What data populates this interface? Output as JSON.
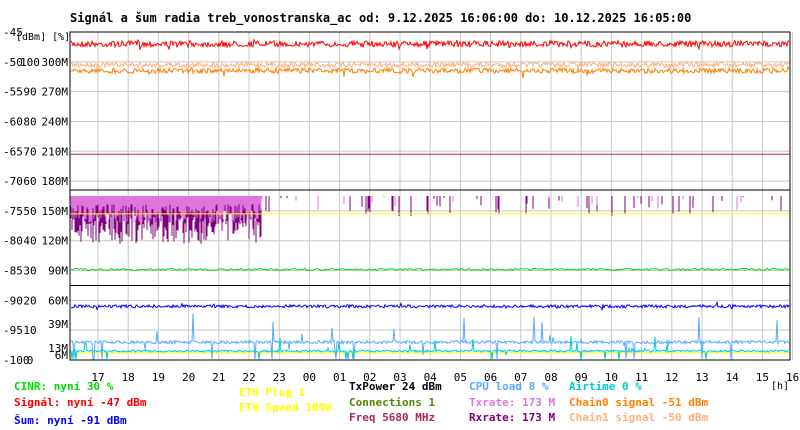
{
  "chart_data": {
    "type": "line",
    "title": "Signál a šum radia treb_vonostranska_ac od: 9.12.2025 16:06:00 do: 10.12.2025 16:05:00",
    "y_axis": {
      "units_label": "[dBm] [%]",
      "dbm": [
        "-45",
        "-50",
        "-55",
        "-60",
        "-65",
        "-70",
        "-75",
        "-80",
        "-85",
        "-90",
        "-95",
        "-100"
      ],
      "percent": [
        "100",
        "90",
        "80",
        "70",
        "60",
        "50",
        "40",
        "30",
        "20",
        "10",
        "0"
      ],
      "rate": [
        "300M",
        "270M",
        "240M",
        "210M",
        "180M",
        "150M",
        "120M",
        "90M",
        "60M"
      ],
      "rate_low_1": "39M",
      "rate_low_2": "13M",
      "rate_low_3": "6M",
      "ylim": [
        -100,
        -45
      ]
    },
    "x_axis": {
      "unit": "[h]",
      "ticks": [
        "17",
        "18",
        "19",
        "20",
        "21",
        "22",
        "23",
        "00",
        "01",
        "02",
        "03",
        "04",
        "05",
        "06",
        "07",
        "08",
        "09",
        "10",
        "11",
        "12",
        "13",
        "14",
        "15",
        "16"
      ]
    },
    "series": [
      {
        "name": "Signál",
        "color": "#ff0000",
        "level_dbm": -47
      },
      {
        "name": "Chain0 signal",
        "color": "#ff8000",
        "level_dbm": -51
      },
      {
        "name": "Chain1 signal",
        "color": "#ffb07a",
        "level_dbm": -50
      },
      {
        "name": "Šum",
        "color": "#0000ff",
        "level_dbm": -91
      },
      {
        "name": "CINR",
        "color": "#00dd00",
        "level_percent": 30
      },
      {
        "name": "ETH Speed",
        "color": "#ffff00",
        "level_mbit": 1000
      },
      {
        "name": "TxPower",
        "color": "#000000",
        "level_dbm": 24
      },
      {
        "name": "Freq",
        "color": "#aa2a5a",
        "level_mhz": 5680
      },
      {
        "name": "Txrate",
        "color": "#dd77dd",
        "level_mbit": 173
      },
      {
        "name": "Rxrate",
        "color": "#800080",
        "level_mbit": 173
      },
      {
        "name": "CPU load",
        "color": "#55aaff",
        "level_percent": 8
      },
      {
        "name": "Airtime",
        "color": "#00cccc",
        "level_percent": 0
      }
    ]
  },
  "legend": {
    "cinr": "CINR: nyní 30 %",
    "signal": "Signál: nyní -47 dBm",
    "noise": "Šum: nyní -91 dBm",
    "eth_plug": "ETH Plug 1",
    "eth_speed": "ETH Speed 1000",
    "txpower": "TxPower 24 dBm",
    "connections": "Connections 1",
    "freq": "Freq 5680 MHz",
    "cpu": "CPU load 8 %",
    "txrate": "Txrate: 173 M",
    "rxrate": "Rxrate: 173 M",
    "airtime": "Airtime 0 %",
    "chain0": "Chain0 signal -51 dBm",
    "chain1": "Chain1 signal -50 dBm"
  },
  "colors": {
    "cinr": "#00dd00",
    "signal": "#ff0000",
    "noise": "#0000ff",
    "eth_plug": "#ffff00",
    "eth_speed": "#ffff00",
    "txpower": "#000000",
    "connections": "#558800",
    "freq": "#aa2a5a",
    "cpu": "#55aaff",
    "txrate": "#dd77dd",
    "rxrate": "#800080",
    "airtime": "#00cccc",
    "chain0": "#ff8000",
    "chain1": "#ffb07a"
  }
}
